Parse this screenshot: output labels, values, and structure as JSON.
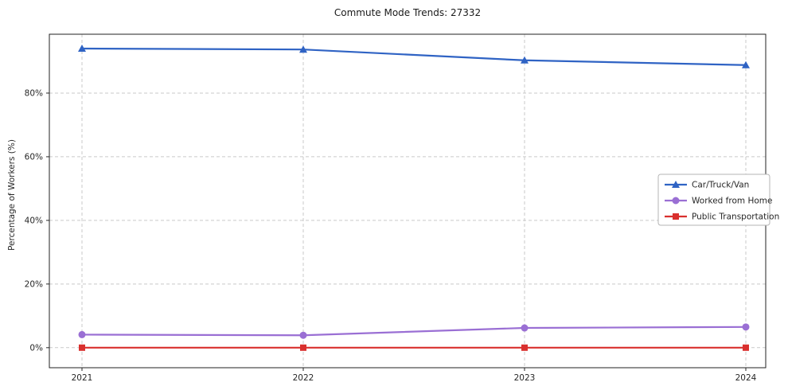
{
  "chart_data": {
    "type": "line",
    "title": "Commute Mode Trends: 27332",
    "xlabel": "",
    "ylabel": "Percentage of Workers (%)",
    "categories": [
      "2021",
      "2022",
      "2023",
      "2024"
    ],
    "series": [
      {
        "name": "Car/Truck/Van",
        "color": "#2f63c4",
        "marker": "triangle",
        "values": [
          94.0,
          93.7,
          90.3,
          88.8
        ]
      },
      {
        "name": "Worked from Home",
        "color": "#9a6fd4",
        "marker": "circle",
        "values": [
          4.1,
          3.9,
          6.2,
          6.5
        ]
      },
      {
        "name": "Public Transportation",
        "color": "#d9302e",
        "marker": "square",
        "values": [
          0.0,
          0.0,
          0.0,
          0.0
        ]
      }
    ],
    "yticks": [
      0,
      20,
      40,
      60,
      80
    ],
    "ytick_labels": [
      "0%",
      "20%",
      "40%",
      "60%",
      "80%"
    ],
    "ylim": [
      -6.3,
      98.5
    ],
    "grid": "dashed-both-axes",
    "grid_color": "#c9c9c9",
    "legend_position": "center-right",
    "legend_entries": [
      "Car/Truck/Van",
      "Worked from Home",
      "Public Transportation"
    ]
  }
}
